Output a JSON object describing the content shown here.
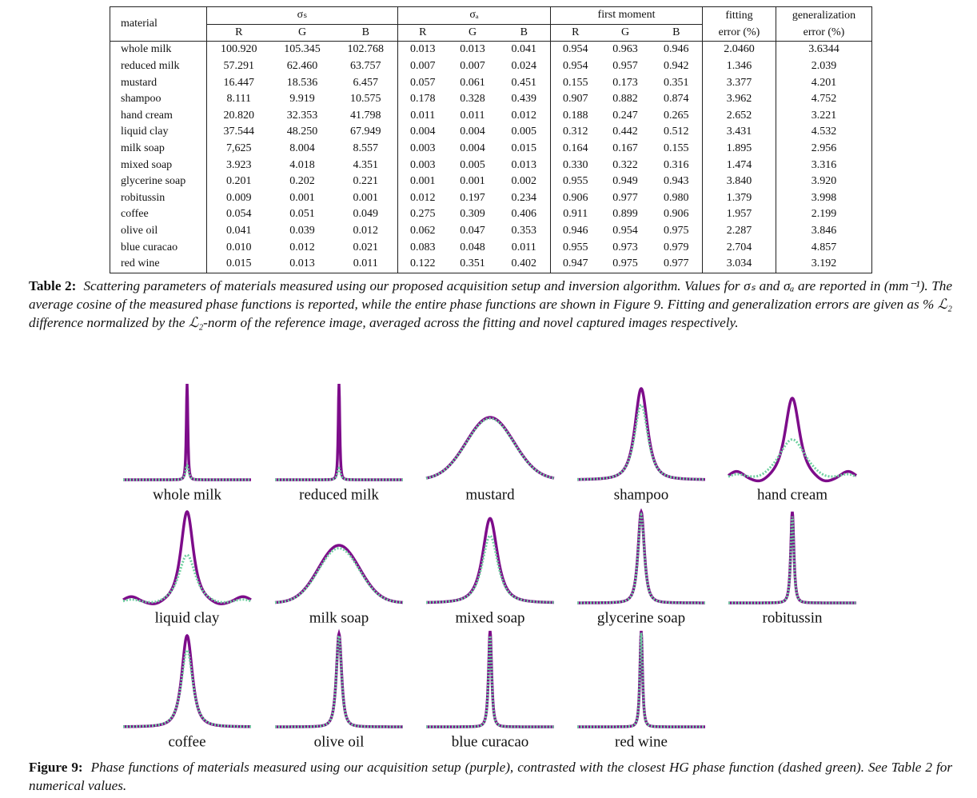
{
  "table": {
    "groups": [
      "material",
      "σₛ",
      "σₐ",
      "first moment",
      "fitting",
      "error (%)",
      "generalization",
      "error (%)"
    ],
    "channels": [
      "R",
      "G",
      "B",
      "R",
      "G",
      "B",
      "R",
      "G",
      "B"
    ],
    "rows": [
      [
        "whole milk",
        "100.920",
        "105.345",
        "102.768",
        "0.013",
        "0.013",
        "0.041",
        "0.954",
        "0.963",
        "0.946",
        "2.0460",
        "3.6344"
      ],
      [
        "reduced milk",
        "57.291",
        "62.460",
        "63.757",
        "0.007",
        "0.007",
        "0.024",
        "0.954",
        "0.957",
        "0.942",
        "1.346",
        "2.039"
      ],
      [
        "mustard",
        "16.447",
        "18.536",
        "6.457",
        "0.057",
        "0.061",
        "0.451",
        "0.155",
        "0.173",
        "0.351",
        "3.377",
        "4.201"
      ],
      [
        "shampoo",
        "8.111",
        "9.919",
        "10.575",
        "0.178",
        "0.328",
        "0.439",
        "0.907",
        "0.882",
        "0.874",
        "3.962",
        "4.752"
      ],
      [
        "hand cream",
        "20.820",
        "32.353",
        "41.798",
        "0.011",
        "0.011",
        "0.012",
        "0.188",
        "0.247",
        "0.265",
        "2.652",
        "3.221"
      ],
      [
        "liquid clay",
        "37.544",
        "48.250",
        "67.949",
        "0.004",
        "0.004",
        "0.005",
        "0.312",
        "0.442",
        "0.512",
        "3.431",
        "4.532"
      ],
      [
        "milk soap",
        "7,625",
        "8.004",
        "8.557",
        "0.003",
        "0.004",
        "0.015",
        "0.164",
        "0.167",
        "0.155",
        "1.895",
        "2.956"
      ],
      [
        "mixed soap",
        "3.923",
        "4.018",
        "4.351",
        "0.003",
        "0.005",
        "0.013",
        "0.330",
        "0.322",
        "0.316",
        "1.474",
        "3.316"
      ],
      [
        "glycerine soap",
        "0.201",
        "0.202",
        "0.221",
        "0.001",
        "0.001",
        "0.002",
        "0.955",
        "0.949",
        "0.943",
        "3.840",
        "3.920"
      ],
      [
        "robitussin",
        "0.009",
        "0.001",
        "0.001",
        "0.012",
        "0.197",
        "0.234",
        "0.906",
        "0.977",
        "0.980",
        "1.379",
        "3.998"
      ],
      [
        "coffee",
        "0.054",
        "0.051",
        "0.049",
        "0.275",
        "0.309",
        "0.406",
        "0.911",
        "0.899",
        "0.906",
        "1.957",
        "2.199"
      ],
      [
        "olive oil",
        "0.041",
        "0.039",
        "0.012",
        "0.062",
        "0.047",
        "0.353",
        "0.946",
        "0.954",
        "0.975",
        "2.287",
        "3.846"
      ],
      [
        "blue curacao",
        "0.010",
        "0.012",
        "0.021",
        "0.083",
        "0.048",
        "0.011",
        "0.955",
        "0.973",
        "0.979",
        "2.704",
        "4.857"
      ],
      [
        "red wine",
        "0.015",
        "0.013",
        "0.011",
        "0.122",
        "0.351",
        "0.402",
        "0.947",
        "0.975",
        "0.977",
        "3.034",
        "3.192"
      ]
    ]
  },
  "table_caption": {
    "label": "Table 2:",
    "text": "Scattering parameters of materials measured using our proposed acquisition setup and inversion algorithm. Values for σₛ and σₐ are reported in (mm⁻¹). The average cosine of the measured phase functions is reported, while the entire phase functions are shown in Figure 9. Fitting and generalization errors are given as % ℒ₂ difference normalized by the ℒ₂-norm of the reference image, averaged across the fitting and novel captured images respectively."
  },
  "figure": {
    "panels": [
      "whole milk",
      "reduced milk",
      "mustard",
      "shampoo",
      "hand cream",
      "liquid clay",
      "milk soap",
      "mixed soap",
      "glycerine soap",
      "robitussin",
      "coffee",
      "olive oil",
      "blue curacao",
      "red wine"
    ]
  },
  "figure_caption": {
    "label": "Figure 9:",
    "text": "Phase functions of materials measured using our acquisition setup (purple), contrasted with the closest HG phase function (dashed green). See Table 2 for numerical values."
  }
}
